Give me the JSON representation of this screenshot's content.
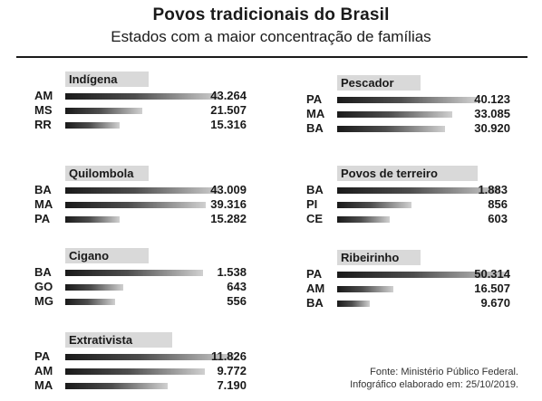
{
  "title": "Povos tradicionais do Brasil",
  "subtitle": "Estados com a maior concentração de famílias",
  "source_line1": "Fonte: Ministério Público Federal.",
  "source_line2": "Infográfico elaborado em: 25/10/2019.",
  "colors": {
    "bar_dark": "#1a1a1a",
    "bar_light": "#d0d0d0",
    "label_bg": "#d9d9d9"
  },
  "chart_data": [
    {
      "type": "bar",
      "title": "Indígena",
      "categories": [
        "AM",
        "MS",
        "RR"
      ],
      "values": [
        43264,
        21507,
        15316
      ],
      "labels": [
        "43.264",
        "21.507",
        "15.316"
      ]
    },
    {
      "type": "bar",
      "title": "Pescador",
      "categories": [
        "PA",
        "MA",
        "BA"
      ],
      "values": [
        40123,
        33085,
        30920
      ],
      "labels": [
        "40.123",
        "33.085",
        "30.920"
      ]
    },
    {
      "type": "bar",
      "title": "Quilombola",
      "categories": [
        "BA",
        "MA",
        "PA"
      ],
      "values": [
        43009,
        39316,
        15282
      ],
      "labels": [
        "43.009",
        "39.316",
        "15.282"
      ]
    },
    {
      "type": "bar",
      "title": "Povos de terreiro",
      "categories": [
        "BA",
        "PI",
        "CE"
      ],
      "values": [
        1883,
        856,
        603
      ],
      "labels": [
        "1.883",
        "856",
        "603"
      ]
    },
    {
      "type": "bar",
      "title": "Cigano",
      "categories": [
        "BA",
        "GO",
        "MG"
      ],
      "values": [
        1538,
        643,
        556
      ],
      "labels": [
        "1.538",
        "643",
        "556"
      ]
    },
    {
      "type": "bar",
      "title": "Ribeirinho",
      "categories": [
        "PA",
        "AM",
        "BA"
      ],
      "values": [
        50314,
        16507,
        9670
      ],
      "labels": [
        "50.314",
        "16.507",
        "9.670"
      ]
    },
    {
      "type": "bar",
      "title": "Extrativista",
      "categories": [
        "PA",
        "AM",
        "MA"
      ],
      "values": [
        11826,
        9772,
        7190
      ],
      "labels": [
        "11.826",
        "9.772",
        "7.190"
      ]
    }
  ]
}
